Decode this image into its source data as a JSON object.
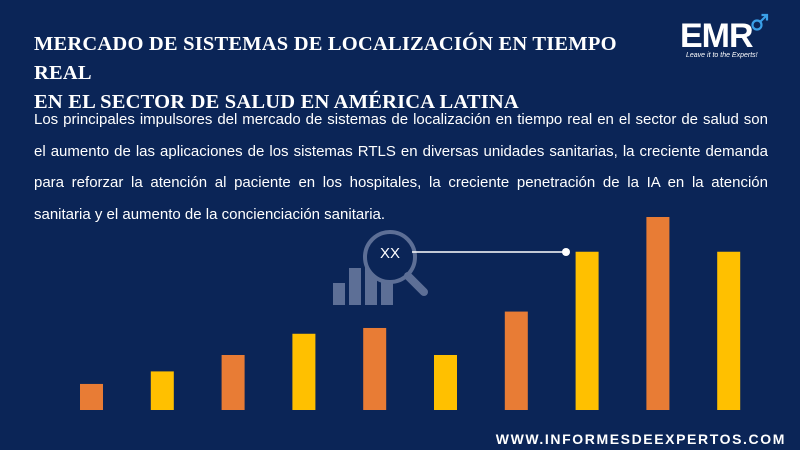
{
  "header": {
    "title_line1": "MERCADO DE SISTEMAS DE LOCALIZACIÓN EN TIEMPO REAL",
    "title_line2": "EN EL SECTOR DE SALUD EN AMÉRICA LATINA"
  },
  "logo": {
    "text": "EMR",
    "tagline": "Leave it to the Experts!"
  },
  "description": "Los principales impulsores del mercado de sistemas de localización en tiempo real en el sector de salud son el aumento de las aplicaciones de los sistemas RTLS en diversas unidades sanitarias, la creciente demanda para reforzar la atención al paciente en los hospitales, la creciente penetración de la IA en la atención sanitaria y el aumento de la concienciación sanitaria.",
  "footer": {
    "website": "WWW.INFORMESDEEXPERTOS.COM"
  },
  "colors": {
    "background": "#0b2557",
    "orange": "#e87c35",
    "yellow": "#ffc000",
    "icon": "#5d6f96"
  },
  "chart_data": {
    "type": "bar",
    "title": "",
    "xlabel": "",
    "ylabel": "",
    "callout_label": "XX",
    "ylim": [
      0,
      200
    ],
    "values": [
      27,
      40,
      57,
      79,
      85,
      57,
      102,
      164,
      200,
      164
    ],
    "bar_colors": [
      "orange",
      "yellow",
      "orange",
      "yellow",
      "orange",
      "yellow",
      "orange",
      "yellow",
      "orange",
      "yellow"
    ]
  }
}
